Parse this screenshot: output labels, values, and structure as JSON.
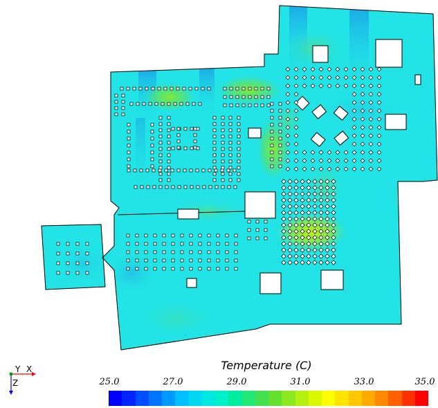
{
  "legend": {
    "title": "Temperature (C)",
    "ticks": [
      "25.0",
      "27.0",
      "29.0",
      "31.0",
      "33.0",
      "35.0"
    ],
    "range": [
      25.0,
      35.0
    ]
  },
  "axes": {
    "y_label": "Y",
    "x_label": "X",
    "z_label": "Z"
  },
  "colors": {
    "background_field": "#22e3e5",
    "warm_zone": "#5ce26a",
    "hot_zone": "#b7f212",
    "cool_zone": "#1ab4e6",
    "outline": "#000000"
  },
  "colormap": [
    "#0000ff",
    "#0024ff",
    "#004cff",
    "#0073ff",
    "#009aff",
    "#00bfff",
    "#00d8f0",
    "#00e8e0",
    "#00f0c8",
    "#00eca0",
    "#22e878",
    "#44e050",
    "#66e030",
    "#8ce820",
    "#b4f010",
    "#dcf800",
    "#ffff00",
    "#ffe400",
    "#ffc800",
    "#ffaa00",
    "#ff8800",
    "#ff6000",
    "#ff3000",
    "#ff0000"
  ]
}
